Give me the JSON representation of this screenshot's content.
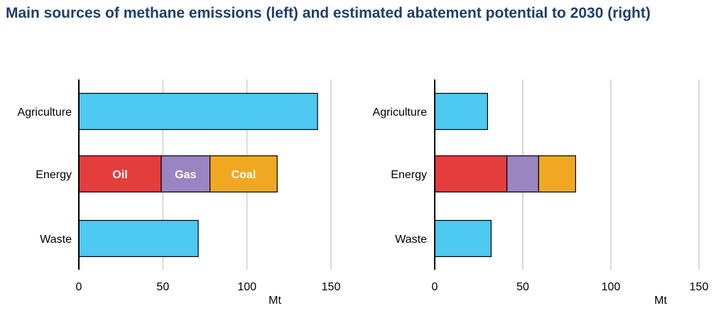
{
  "title": "Main sources of methane emissions (left) and estimated abatement potential to 2030 (right)",
  "colors": {
    "agriculture": "#4dc9f2",
    "oil": "#e43d3d",
    "gas": "#9b84c2",
    "coal": "#f0a823",
    "waste": "#4dc9f2",
    "gridline": "#d9d9d9",
    "axis": "#000000",
    "title": "#1f3f6b"
  },
  "chart_data": [
    {
      "type": "bar",
      "orientation": "horizontal",
      "stacked": true,
      "categories": [
        "Agriculture",
        "Energy",
        "Waste"
      ],
      "series": [
        {
          "key": "agriculture",
          "values": [
            142,
            0,
            0
          ]
        },
        {
          "key": "oil",
          "name": "Oil",
          "values": [
            0,
            49,
            0
          ]
        },
        {
          "key": "gas",
          "name": "Gas",
          "values": [
            0,
            29,
            0
          ]
        },
        {
          "key": "coal",
          "name": "Coal",
          "values": [
            0,
            40,
            0
          ]
        },
        {
          "key": "waste",
          "values": [
            0,
            0,
            71
          ]
        }
      ],
      "xticks": [
        0,
        50,
        100,
        150
      ],
      "xlim": [
        0,
        150
      ],
      "xlabel": "Mt",
      "grid": true
    },
    {
      "type": "bar",
      "orientation": "horizontal",
      "stacked": true,
      "categories": [
        "Agriculture",
        "Energy",
        "Waste"
      ],
      "series": [
        {
          "key": "agriculture",
          "values": [
            30,
            0,
            0
          ]
        },
        {
          "key": "oil",
          "values": [
            0,
            41,
            0
          ]
        },
        {
          "key": "gas",
          "values": [
            0,
            18,
            0
          ]
        },
        {
          "key": "coal",
          "values": [
            0,
            21,
            0
          ]
        },
        {
          "key": "waste",
          "values": [
            0,
            0,
            32
          ]
        }
      ],
      "xticks": [
        0,
        50,
        100,
        150
      ],
      "xlim": [
        0,
        150
      ],
      "xlabel": "Mt",
      "grid": true
    }
  ]
}
